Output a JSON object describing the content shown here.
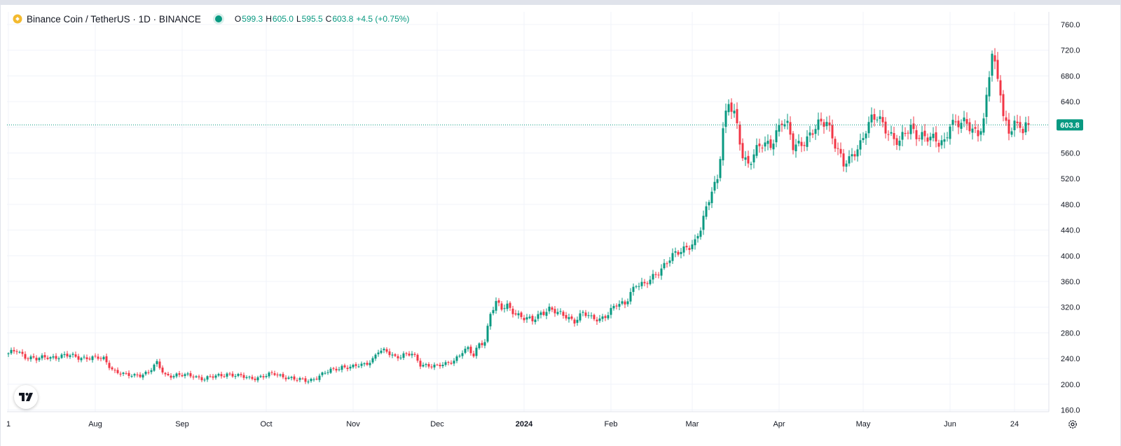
{
  "legend": {
    "title": "Binance Coin / TetherUS · 1D · BINANCE",
    "ohlc": {
      "o_label": "O",
      "o": "599.3",
      "h_label": "H",
      "h": "605.0",
      "l_label": "L",
      "l": "595.5",
      "c_label": "C",
      "c": "603.8",
      "change": "+4.5 (+0.75%)"
    }
  },
  "icons": {
    "logo": "tradingview-logo-icon",
    "settings": "settings-gear-icon",
    "symbol": "binance-coin-icon",
    "status": "market-status-dot-icon"
  },
  "colors": {
    "up": "#089981",
    "down": "#f23645",
    "grid": "#f0f3fa",
    "text": "#131722",
    "price_line": "#089981"
  },
  "chart_data": {
    "type": "candlestick",
    "symbol": "BNBUSDT",
    "interval": "1D",
    "ylim": [
      150,
      775
    ],
    "y_ticks": [
      "760.0",
      "720.0",
      "680.0",
      "640.0",
      "600.0",
      "560.0",
      "520.0",
      "480.0",
      "440.0",
      "400.0",
      "360.0",
      "320.0",
      "280.0",
      "240.0",
      "200.0",
      "160.0"
    ],
    "x_ticks": [
      {
        "label": "1",
        "day": 0
      },
      {
        "label": "Aug",
        "day": 31
      },
      {
        "label": "Sep",
        "day": 62
      },
      {
        "label": "Oct",
        "day": 92
      },
      {
        "label": "Nov",
        "day": 123
      },
      {
        "label": "Dec",
        "day": 153
      },
      {
        "label": "2024",
        "day": 184,
        "bold": true
      },
      {
        "label": "Feb",
        "day": 215
      },
      {
        "label": "Mar",
        "day": 244
      },
      {
        "label": "Apr",
        "day": 275
      },
      {
        "label": "May",
        "day": 305
      },
      {
        "label": "Jun",
        "day": 336
      },
      {
        "label": "24",
        "day": 359
      }
    ],
    "last_price": 603.8,
    "last_price_label": "603.8",
    "anchors": [
      [
        0,
        246
      ],
      [
        3,
        253
      ],
      [
        6,
        244
      ],
      [
        10,
        238
      ],
      [
        14,
        243
      ],
      [
        18,
        243
      ],
      [
        22,
        244
      ],
      [
        27,
        242
      ],
      [
        30,
        240
      ],
      [
        34,
        240
      ],
      [
        38,
        220
      ],
      [
        42,
        213
      ],
      [
        46,
        215
      ],
      [
        50,
        218
      ],
      [
        53,
        232
      ],
      [
        56,
        215
      ],
      [
        62,
        213
      ],
      [
        66,
        214
      ],
      [
        70,
        208
      ],
      [
        74,
        212
      ],
      [
        78,
        217
      ],
      [
        82,
        212
      ],
      [
        86,
        210
      ],
      [
        91,
        212
      ],
      [
        95,
        216
      ],
      [
        99,
        212
      ],
      [
        103,
        206
      ],
      [
        107,
        206
      ],
      [
        111,
        213
      ],
      [
        115,
        221
      ],
      [
        119,
        228
      ],
      [
        123,
        226
      ],
      [
        127,
        231
      ],
      [
        130,
        240
      ],
      [
        132,
        252
      ],
      [
        135,
        249
      ],
      [
        138,
        243
      ],
      [
        141,
        247
      ],
      [
        144,
        246
      ],
      [
        147,
        230
      ],
      [
        150,
        231
      ],
      [
        153,
        228
      ],
      [
        156,
        230
      ],
      [
        159,
        238
      ],
      [
        162,
        252
      ],
      [
        164,
        254
      ],
      [
        166,
        243
      ],
      [
        168,
        263
      ],
      [
        170,
        268
      ],
      [
        172,
        312
      ],
      [
        174,
        326
      ],
      [
        176,
        316
      ],
      [
        178,
        322
      ],
      [
        181,
        312
      ],
      [
        184,
        302
      ],
      [
        187,
        298
      ],
      [
        190,
        312
      ],
      [
        193,
        318
      ],
      [
        196,
        309
      ],
      [
        199,
        306
      ],
      [
        202,
        300
      ],
      [
        205,
        310
      ],
      [
        208,
        302
      ],
      [
        211,
        303
      ],
      [
        214,
        310
      ],
      [
        217,
        322
      ],
      [
        220,
        326
      ],
      [
        222,
        345
      ],
      [
        224,
        356
      ],
      [
        227,
        352
      ],
      [
        230,
        368
      ],
      [
        233,
        382
      ],
      [
        236,
        394
      ],
      [
        239,
        404
      ],
      [
        242,
        416
      ],
      [
        245,
        421
      ],
      [
        247,
        440
      ],
      [
        249,
        470
      ],
      [
        251,
        505
      ],
      [
        253,
        522
      ],
      [
        255,
        600
      ],
      [
        257,
        633
      ],
      [
        259,
        618
      ],
      [
        262,
        560
      ],
      [
        264,
        545
      ],
      [
        266,
        558
      ],
      [
        269,
        570
      ],
      [
        272,
        575
      ],
      [
        274,
        595
      ],
      [
        276,
        610
      ],
      [
        278,
        598
      ],
      [
        280,
        568
      ],
      [
        282,
        575
      ],
      [
        284,
        582
      ],
      [
        286,
        588
      ],
      [
        289,
        600
      ],
      [
        292,
        610
      ],
      [
        294,
        590
      ],
      [
        296,
        565
      ],
      [
        298,
        540
      ],
      [
        300,
        545
      ],
      [
        302,
        562
      ],
      [
        304,
        578
      ],
      [
        306,
        600
      ],
      [
        308,
        610
      ],
      [
        310,
        612
      ],
      [
        312,
        604
      ],
      [
        314,
        596
      ],
      [
        316,
        585
      ],
      [
        318,
        575
      ],
      [
        320,
        588
      ],
      [
        322,
        598
      ],
      [
        324,
        592
      ],
      [
        326,
        590
      ],
      [
        328,
        583
      ],
      [
        330,
        578
      ],
      [
        332,
        574
      ],
      [
        334,
        580
      ],
      [
        336,
        610
      ],
      [
        338,
        605
      ],
      [
        340,
        602
      ],
      [
        342,
        604
      ],
      [
        344,
        598
      ],
      [
        346,
        596
      ],
      [
        348,
        608
      ],
      [
        350,
        680
      ],
      [
        351,
        710
      ],
      [
        352,
        690
      ],
      [
        353,
        675
      ],
      [
        354,
        660
      ],
      [
        355,
        620
      ],
      [
        357,
        598
      ],
      [
        359,
        603
      ],
      [
        360,
        598
      ],
      [
        361,
        600
      ],
      [
        362,
        589
      ],
      [
        363,
        599
      ],
      [
        364,
        603.8
      ]
    ]
  }
}
